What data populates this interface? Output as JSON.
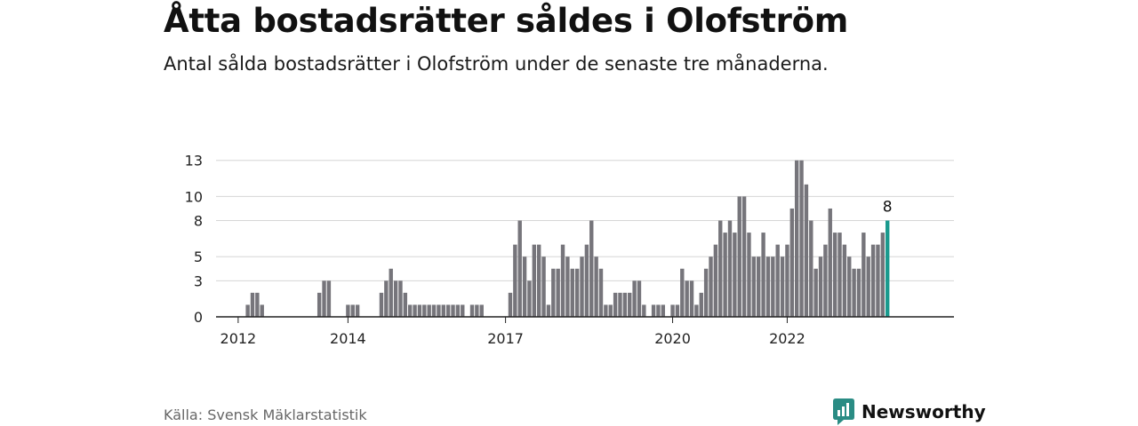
{
  "title": "Åtta bostadsrätter såldes i Olofström",
  "subtitle": "Antal sålda bostadsrätter i Olofström under de senaste tre månaderna.",
  "source": "Källa: Svensk Mäklarstatistik",
  "brand": {
    "name": "Newsworthy",
    "icon": "newsworthy-logo-icon",
    "color": "#2a8c84"
  },
  "chart_data": {
    "type": "bar",
    "x_start": "2011-11",
    "x_step": "month",
    "x_ticks": [
      {
        "label": "2012",
        "month": "2012-03"
      },
      {
        "label": "2014",
        "month": "2014-02"
      },
      {
        "label": "2017",
        "month": "2016-11"
      },
      {
        "label": "2020",
        "month": "2019-10"
      },
      {
        "label": "2022",
        "month": "2021-10"
      }
    ],
    "y_ticks": [
      "0",
      "3",
      "5",
      "8",
      "10",
      "13"
    ],
    "ylim": [
      0,
      15
    ],
    "grid": true,
    "bar_color": "#76757b",
    "highlight_color": "#1a9a8e",
    "highlight_label": "8",
    "values": [
      0,
      0,
      0,
      0,
      0,
      0,
      1,
      2,
      2,
      1,
      0,
      0,
      0,
      0,
      0,
      0,
      0,
      0,
      0,
      0,
      0,
      2,
      3,
      3,
      0,
      0,
      0,
      1,
      1,
      1,
      0,
      0,
      0,
      0,
      2,
      3,
      4,
      3,
      3,
      2,
      1,
      1,
      1,
      1,
      1,
      1,
      1,
      1,
      1,
      1,
      1,
      1,
      0,
      1,
      1,
      1,
      0,
      0,
      0,
      0,
      0,
      2,
      6,
      8,
      5,
      3,
      6,
      6,
      5,
      1,
      4,
      4,
      6,
      5,
      4,
      4,
      5,
      6,
      8,
      5,
      4,
      1,
      1,
      2,
      2,
      2,
      2,
      3,
      3,
      1,
      0,
      1,
      1,
      1,
      0,
      1,
      1,
      4,
      3,
      3,
      1,
      2,
      4,
      5,
      6,
      8,
      7,
      8,
      7,
      10,
      10,
      7,
      5,
      5,
      7,
      5,
      5,
      6,
      5,
      6,
      9,
      13,
      13,
      11,
      8,
      4,
      5,
      6,
      9,
      7,
      7,
      6,
      5,
      4,
      4,
      7,
      5,
      6,
      6,
      7,
      8
    ]
  }
}
